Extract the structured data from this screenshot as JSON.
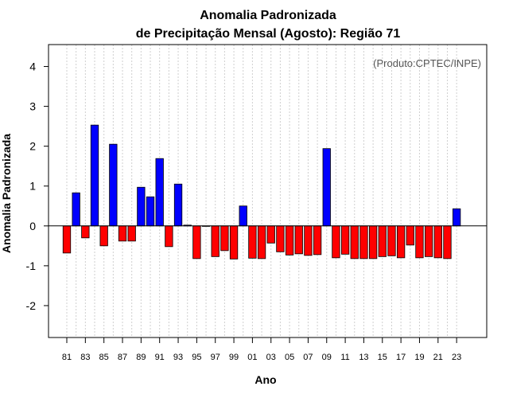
{
  "chart_data": {
    "type": "bar",
    "title": "Anomalia Padronizada",
    "subtitle": "de Precipitação Mensal (Agosto): Região 71",
    "xlabel": "Ano",
    "ylabel": "Anomalia Padronizada",
    "annotation": "(Produto:CPTEC/INPE)",
    "ylim": [
      -2.8,
      4.55
    ],
    "yticks": [
      -2,
      -1,
      0,
      1,
      2,
      3,
      4
    ],
    "grid": "vertical-dotted",
    "positive_color": "#0000ff",
    "negative_color": "#ff0000",
    "years": [
      1981,
      1982,
      1983,
      1984,
      1985,
      1986,
      1987,
      1988,
      1989,
      1990,
      1991,
      1992,
      1993,
      1994,
      1995,
      1996,
      1997,
      1998,
      1999,
      2000,
      2001,
      2002,
      2003,
      2004,
      2005,
      2006,
      2007,
      2008,
      2009,
      2010,
      2011,
      2012,
      2013,
      2014,
      2015,
      2016,
      2017,
      2018,
      2019,
      2020,
      2021,
      2022,
      2023
    ],
    "x_tick_labels": [
      "81",
      "83",
      "85",
      "87",
      "89",
      "91",
      "93",
      "95",
      "97",
      "99",
      "01",
      "03",
      "05",
      "07",
      "09",
      "11",
      "13",
      "15",
      "17",
      "19",
      "21",
      "23"
    ],
    "values": [
      -0.68,
      0.83,
      -0.3,
      2.53,
      -0.5,
      2.05,
      -0.38,
      -0.38,
      0.97,
      0.73,
      1.69,
      -0.52,
      1.05,
      0.02,
      -0.82,
      0.0,
      -0.77,
      -0.62,
      -0.83,
      0.5,
      -0.81,
      -0.82,
      -0.43,
      -0.65,
      -0.73,
      -0.7,
      -0.74,
      -0.72,
      1.94,
      -0.8,
      -0.71,
      -0.82,
      -0.82,
      -0.82,
      -0.77,
      -0.75,
      -0.8,
      -0.48,
      -0.8,
      -0.77,
      -0.8,
      -0.82,
      0.43
    ]
  }
}
